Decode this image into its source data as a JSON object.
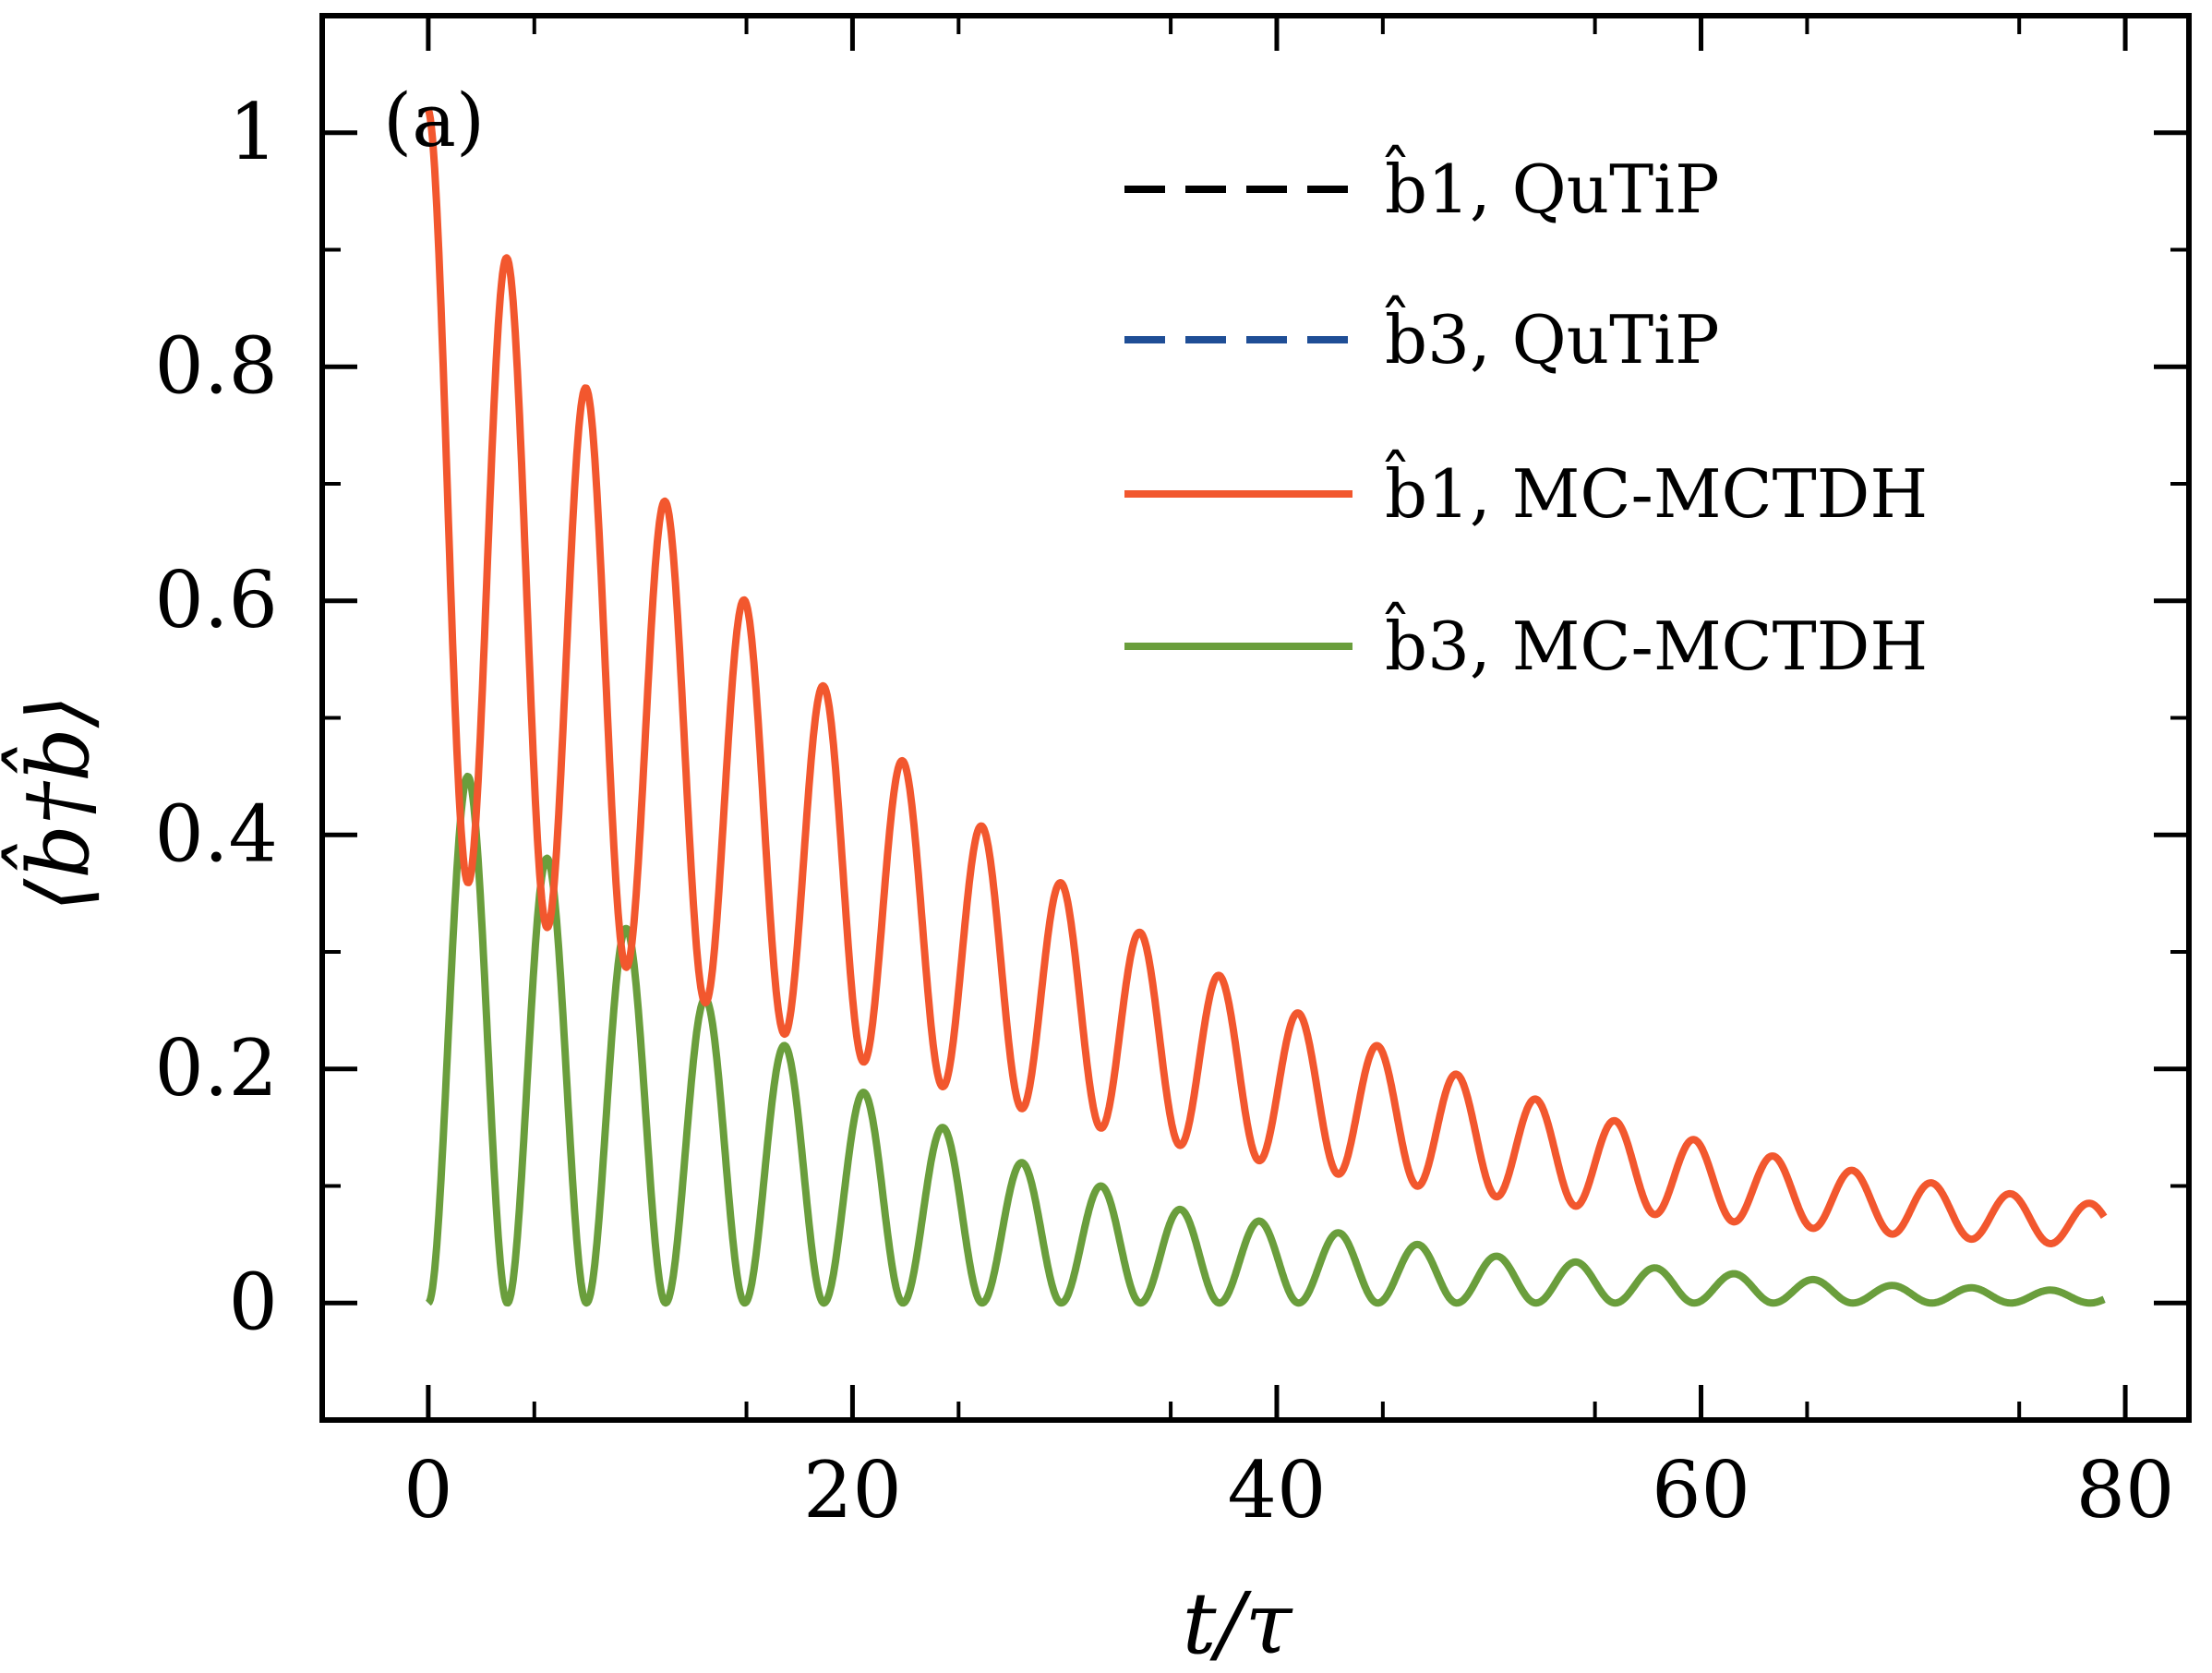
{
  "chart_data": {
    "type": "line",
    "panel_label": "(a)",
    "xlabel": "t/τ",
    "ylabel": "⟨b̂†b̂⟩",
    "xlim": [
      -5,
      83
    ],
    "ylim": [
      -0.1,
      1.1
    ],
    "xticks": [
      0,
      20,
      40,
      60,
      80
    ],
    "xtick_labels": [
      "0",
      "20",
      "40",
      "60",
      "80"
    ],
    "yticks": [
      0,
      0.2,
      0.4,
      0.6,
      0.8,
      1
    ],
    "ytick_labels": [
      "0",
      "0.2",
      "0.4",
      "0.6",
      "0.8",
      "1"
    ],
    "legend_position": "top-right",
    "grid": false,
    "series": [
      {
        "name": "b̂1, QuTiP",
        "color": "#000000",
        "style": "dashed",
        "x_start": 0,
        "x_end": 79,
        "oscillation_period": 3.73,
        "envelope_mean_start": 0.7,
        "envelope_mean_end": 0.026,
        "oscillation_amplitude_start": 0.32,
        "oscillation_amplitude_end": 0.004,
        "decay_time": 28
      },
      {
        "name": "b̂3, QuTiP",
        "color": "#1f4e96",
        "style": "dashed",
        "x_start": 0,
        "x_end": 79,
        "oscillation_period": 3.73,
        "peak_values": [
          0.45,
          0.38,
          0.32,
          0.26,
          0.22,
          0.18,
          0.15,
          0.12,
          0.1,
          0.08,
          0.07,
          0.06,
          0.05,
          0.04,
          0.035,
          0.03,
          0.025,
          0.02,
          0.015,
          0.013,
          0.011
        ],
        "trough_value": 0.0
      },
      {
        "name": "b̂1, MC-MCTDH",
        "color": "#f2572e",
        "style": "solid",
        "x_start": 0,
        "x_end": 79,
        "oscillation_period": 3.73,
        "envelope_mean_start": 0.7,
        "envelope_mean_end": 0.026,
        "oscillation_amplitude_start": 0.32,
        "oscillation_amplitude_end": 0.004,
        "decay_time": 28
      },
      {
        "name": "b̂3, MC-MCTDH",
        "color": "#6a9e3c",
        "style": "solid",
        "x_start": 0,
        "x_end": 79,
        "oscillation_period": 3.73,
        "peak_values": [
          0.45,
          0.38,
          0.32,
          0.26,
          0.22,
          0.18,
          0.15,
          0.12,
          0.1,
          0.08,
          0.07,
          0.06,
          0.05,
          0.04,
          0.035,
          0.03,
          0.025,
          0.02,
          0.015,
          0.013,
          0.011
        ],
        "trough_value": 0.0
      }
    ]
  }
}
